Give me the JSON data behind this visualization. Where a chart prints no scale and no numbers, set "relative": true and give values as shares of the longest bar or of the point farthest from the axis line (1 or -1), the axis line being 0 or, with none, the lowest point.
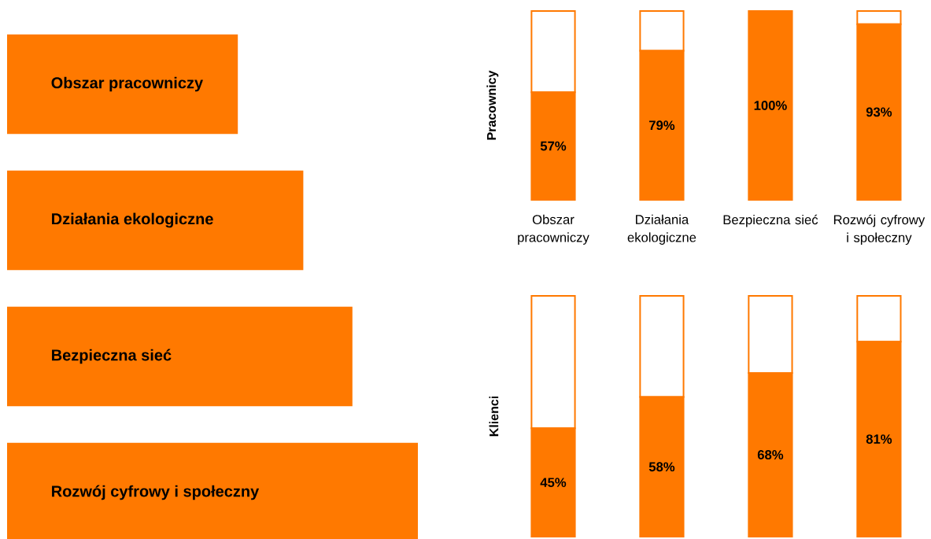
{
  "chart_data": [
    {
      "type": "bar",
      "orientation": "horizontal",
      "relative": true,
      "color": "#ff7900",
      "categories": [
        "Obszar pracowniczy",
        "Działania ekologiczne",
        "Bezpieczna sieć",
        "Rozwój cyfrowy i społeczny"
      ],
      "values": [
        0.56,
        0.72,
        0.84,
        1
      ]
    },
    {
      "type": "bar",
      "stacked": true,
      "ylabel": "Pracownicy",
      "ylim": [
        0,
        100
      ],
      "tick_labels": "x",
      "categories": [
        "Obszar pracowniczy",
        "Działania ekologiczne",
        "Bezpieczna sieć",
        "Rozwój cyfrowy i społeczny"
      ],
      "series": [
        {
          "color": "#ff7900",
          "values": [
            57,
            79,
            100,
            93
          ],
          "value_labels": [
            "57%",
            "79%",
            "100%",
            "93%"
          ]
        },
        {
          "color": "#ffffff",
          "values": [
            43,
            21,
            0,
            7
          ]
        }
      ]
    },
    {
      "type": "bar",
      "stacked": true,
      "ylabel": "Klienci",
      "ylim": [
        0,
        100
      ],
      "tick_labels": false,
      "categories": [
        null,
        null,
        null,
        null
      ],
      "series": [
        {
          "color": "#ff7900",
          "values": [
            45,
            58,
            68,
            81
          ],
          "value_labels": [
            "45%",
            "58%",
            "68%",
            "81%"
          ]
        },
        {
          "color": "#ffffff",
          "values": [
            55,
            42,
            32,
            19
          ]
        }
      ]
    }
  ]
}
